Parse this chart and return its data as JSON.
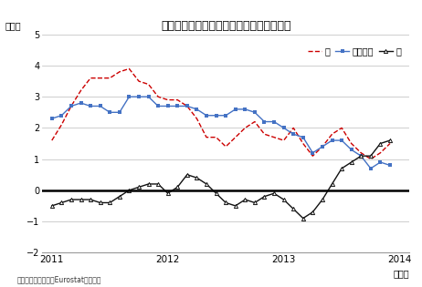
{
  "title": "日米欧の消費者物価上昇率（前年同月比）",
  "ylabel": "（％）",
  "xlabel_note": "（年）",
  "source_note": "（資料）米労働省、Eurostat、総務省",
  "ylim": [
    -2,
    5
  ],
  "yticks": [
    -2,
    -1,
    0,
    1,
    2,
    3,
    4,
    5
  ],
  "background_color": "#ffffff",
  "grid_color": "#bbbbbb",
  "us": [
    1.6,
    2.1,
    2.7,
    3.2,
    3.6,
    3.6,
    3.6,
    3.8,
    3.9,
    3.5,
    3.4,
    3.0,
    2.9,
    2.9,
    2.7,
    2.3,
    1.7,
    1.7,
    1.4,
    1.7,
    2.0,
    2.2,
    1.8,
    1.7,
    1.6,
    2.0,
    1.5,
    1.1,
    1.4,
    1.8,
    2.0,
    1.5,
    1.2,
    1.0,
    1.2,
    1.5
  ],
  "eu": [
    2.3,
    2.4,
    2.7,
    2.8,
    2.7,
    2.7,
    2.5,
    2.5,
    3.0,
    3.0,
    3.0,
    2.7,
    2.7,
    2.7,
    2.7,
    2.6,
    2.4,
    2.4,
    2.4,
    2.6,
    2.6,
    2.5,
    2.2,
    2.2,
    2.0,
    1.8,
    1.7,
    1.2,
    1.4,
    1.6,
    1.6,
    1.3,
    1.1,
    0.7,
    0.9,
    0.8
  ],
  "jp": [
    -0.5,
    -0.4,
    -0.3,
    -0.3,
    -0.3,
    -0.4,
    -0.4,
    -0.2,
    0.0,
    0.1,
    0.2,
    0.2,
    -0.1,
    0.1,
    0.5,
    0.4,
    0.2,
    -0.1,
    -0.4,
    -0.5,
    -0.3,
    -0.4,
    -0.2,
    -0.1,
    -0.3,
    -0.6,
    -0.9,
    -0.7,
    -0.3,
    0.2,
    0.7,
    0.9,
    1.1,
    1.1,
    1.5,
    1.6
  ],
  "us_color": "#cc0000",
  "eu_color": "#4472c4",
  "jp_color": "#111111",
  "zero_line_color": "#000000",
  "legend_labels": [
    "米",
    "ユーロ圏",
    "日"
  ],
  "xtick_years": [
    "2011",
    "2012",
    "2013",
    "2014"
  ]
}
